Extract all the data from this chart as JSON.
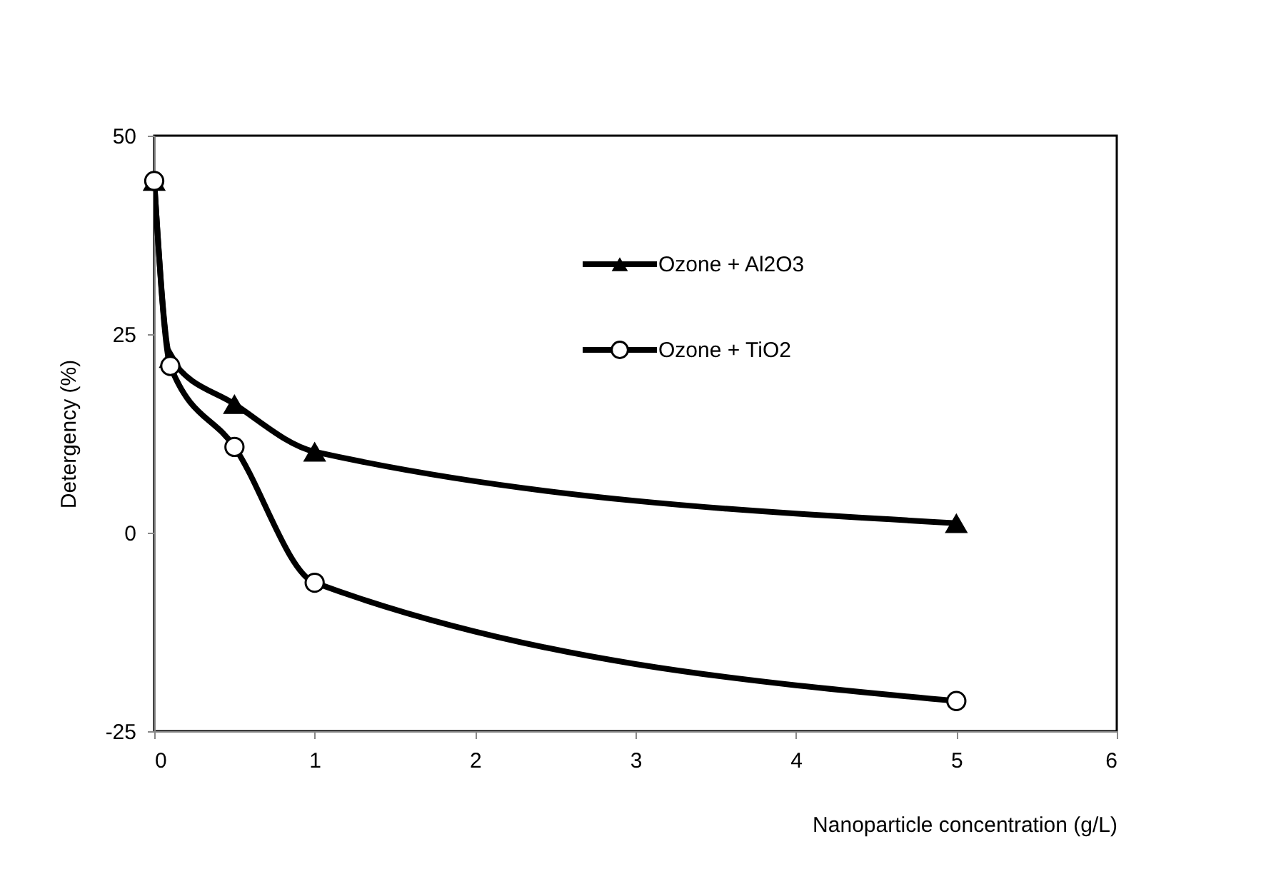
{
  "chart_data": {
    "type": "line",
    "xlabel": "Nanoparticle concentration (g/L)",
    "ylabel": "Detergency (%)",
    "x": [
      0,
      0.1,
      0.5,
      1,
      5
    ],
    "series": [
      {
        "name": "Ozone + Al2O3",
        "color": "#000000",
        "marker": "triangle",
        "values": [
          44.3,
          22,
          16.2,
          10.2,
          1.2
        ]
      },
      {
        "name": "Ozone + TiO2",
        "color": "#000000",
        "marker": "circle",
        "values": [
          44.3,
          21,
          10.8,
          -6.3,
          -21.2
        ]
      }
    ],
    "xlim": [
      0,
      6
    ],
    "xticks": [
      0,
      1,
      2,
      3,
      4,
      5,
      6
    ],
    "ylim": [
      -25,
      50
    ],
    "yticks": [
      -25,
      0,
      25,
      50
    ],
    "grid": false,
    "legend": "top right",
    "line_style": "solid"
  }
}
